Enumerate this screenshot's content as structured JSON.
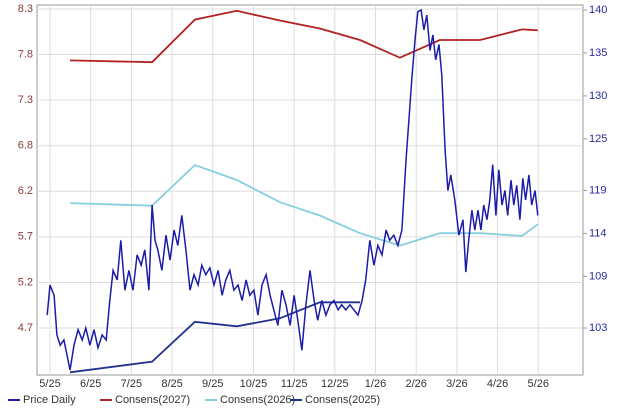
{
  "chart_data": {
    "type": "line",
    "xlim": [
      -0.32,
      13.1
    ],
    "xticks": [
      {
        "value": 0,
        "label": "5/25"
      },
      {
        "value": 1,
        "label": "6/25"
      },
      {
        "value": 2,
        "label": "7/25"
      },
      {
        "value": 3,
        "label": "8/25"
      },
      {
        "value": 4,
        "label": "9/25"
      },
      {
        "value": 5,
        "label": "10/25"
      },
      {
        "value": 6,
        "label": "11/25"
      },
      {
        "value": 7,
        "label": "12/25"
      },
      {
        "value": 8,
        "label": "1/26"
      },
      {
        "value": 9,
        "label": "2/26"
      },
      {
        "value": 10,
        "label": "3/26"
      },
      {
        "value": 11,
        "label": "4/26"
      },
      {
        "value": 12,
        "label": "5/26"
      }
    ],
    "ylim": [
      4.17,
      8.345
    ],
    "yticks": [
      8.3,
      {
        "value": 7.786,
        "label": "7.8"
      },
      {
        "value": 7.271,
        "label": "7.3"
      },
      {
        "value": 6.757,
        "label": "6.8"
      },
      {
        "value": 6.243,
        "label": "6.2"
      },
      {
        "value": 5.729,
        "label": "5.7"
      },
      {
        "value": 5.214,
        "label": "5.2"
      },
      4.7
    ],
    "y2lim": [
      97.53,
      140.58
    ],
    "y2ticks": [
      140,
      135,
      130,
      125,
      119,
      114,
      109,
      103
    ],
    "grid": true,
    "legend": "bottom",
    "series": [
      {
        "name": "Price Daily",
        "color": "#1c1ca8",
        "axis": "y2",
        "x": [
          -0.07,
          0,
          0.1,
          0.17,
          0.25,
          0.34,
          0.42,
          0.49,
          0.59,
          0.69,
          0.79,
          0.88,
          0.98,
          1.08,
          1.18,
          1.28,
          1.38,
          1.47,
          1.55,
          1.65,
          1.74,
          1.84,
          1.94,
          2.04,
          2.14,
          2.24,
          2.33,
          2.43,
          2.51,
          2.58,
          2.65,
          2.75,
          2.85,
          2.95,
          3.05,
          3.14,
          3.24,
          3.34,
          3.44,
          3.54,
          3.64,
          3.73,
          3.83,
          3.93,
          4.03,
          4.13,
          4.23,
          4.32,
          4.42,
          4.52,
          4.62,
          4.72,
          4.82,
          4.91,
          5.01,
          5.11,
          5.21,
          5.31,
          5.41,
          5.5,
          5.6,
          5.7,
          5.8,
          5.9,
          6.0,
          6.09,
          6.19,
          6.29,
          6.39,
          6.49,
          6.58,
          6.68,
          6.78,
          6.88,
          6.98,
          7.08,
          7.17,
          7.27,
          7.37,
          7.47,
          7.57,
          7.67,
          7.76,
          7.86,
          7.96,
          8.06,
          8.16,
          8.26,
          8.35,
          8.45,
          8.55,
          8.65,
          8.75,
          8.82,
          8.89,
          8.97,
          9.04,
          9.12,
          9.19,
          9.26,
          9.34,
          9.41,
          9.48,
          9.56,
          9.63,
          9.71,
          9.78,
          9.85,
          9.95,
          10.05,
          10.15,
          10.22,
          10.29,
          10.37,
          10.44,
          10.52,
          10.59,
          10.66,
          10.74,
          10.81,
          10.88,
          10.96,
          11.03,
          11.11,
          11.18,
          11.25,
          11.33,
          11.4,
          11.47,
          11.55,
          11.62,
          11.69,
          11.77,
          11.84,
          11.92,
          11.99
        ],
        "values": [
          104.5,
          108.0,
          106.8,
          102.2,
          101.0,
          101.6,
          99.8,
          98.1,
          101.0,
          102.8,
          101.6,
          103.0,
          101.0,
          102.8,
          100.7,
          102.2,
          101.6,
          106.2,
          109.7,
          108.6,
          113.2,
          107.4,
          109.7,
          107.4,
          111.5,
          110.3,
          112.1,
          107.4,
          117.3,
          113.2,
          112.1,
          109.7,
          113.8,
          110.9,
          114.4,
          112.6,
          116.1,
          112.1,
          107.4,
          109.2,
          108.0,
          110.3,
          109.2,
          110.0,
          108.0,
          109.7,
          106.8,
          108.6,
          109.7,
          107.4,
          108.0,
          106.2,
          108.6,
          106.8,
          107.4,
          104.5,
          108.0,
          109.2,
          106.8,
          105.1,
          103.3,
          107.4,
          105.7,
          103.3,
          106.8,
          103.9,
          100.4,
          105.7,
          109.7,
          106.2,
          103.9,
          106.2,
          104.5,
          105.7,
          106.2,
          105.1,
          105.7,
          105.1,
          105.7,
          105.1,
          104.5,
          106.2,
          108.6,
          113.2,
          110.3,
          112.6,
          111.5,
          114.4,
          113.2,
          113.8,
          112.6,
          114.4,
          122.5,
          127.2,
          131.8,
          136.5,
          139.8,
          140.0,
          137.7,
          139.4,
          135.3,
          137.1,
          134.2,
          136.0,
          132.4,
          123.7,
          119.0,
          120.8,
          117.9,
          113.8,
          115.6,
          109.5,
          113.2,
          116.7,
          114.4,
          116.7,
          114.4,
          117.3,
          115.6,
          117.9,
          122.0,
          116.1,
          121.4,
          117.3,
          119.0,
          116.1,
          120.2,
          117.3,
          119.6,
          115.6,
          120.4,
          117.9,
          120.8,
          117.3,
          119.0,
          116.1
        ]
      },
      {
        "name": "Consens(2027)",
        "color": "#b22222",
        "x": [
          0.49,
          2.51,
          3.56,
          4.59,
          5.65,
          6.63,
          7.62,
          8.6,
          9.58,
          10.57,
          11.6,
          11.99
        ],
        "values": [
          7.72,
          7.7,
          8.18,
          8.28,
          8.17,
          8.08,
          7.95,
          7.75,
          7.95,
          7.95,
          8.07,
          8.06
        ]
      },
      {
        "name": "Consens(2026)",
        "color": "#86cfe0",
        "x": [
          0.49,
          2.51,
          3.56,
          4.59,
          5.65,
          6.63,
          7.62,
          8.6,
          9.58,
          10.57,
          11.6,
          11.99
        ],
        "values": [
          6.11,
          6.08,
          6.54,
          6.37,
          6.12,
          5.97,
          5.77,
          5.63,
          5.77,
          5.77,
          5.74,
          5.87
        ]
      },
      {
        "name": "Consens(2025)",
        "color": "#22308f",
        "x": [
          0.49,
          2.51,
          3.56,
          4.59,
          5.65,
          6.63,
          7.62
        ],
        "values": [
          4.2,
          4.32,
          4.77,
          4.72,
          4.81,
          4.99,
          4.99
        ]
      }
    ]
  }
}
